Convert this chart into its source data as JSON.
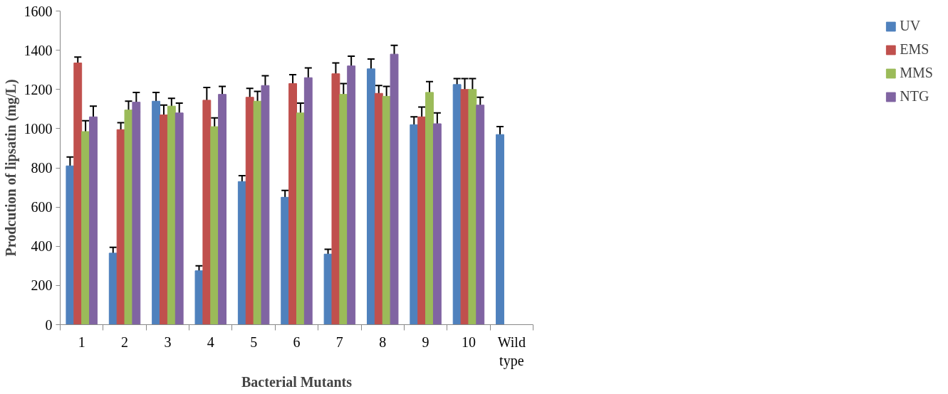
{
  "chart_data": {
    "type": "bar",
    "xlabel": "Bacterial Mutants",
    "ylabel": "Prodcution of lipsatin (mg/L)",
    "categories": [
      "1",
      "2",
      "3",
      "4",
      "5",
      "6",
      "7",
      "8",
      "9",
      "10",
      "Wild type"
    ],
    "series": [
      {
        "name": "UV",
        "color": "#4f81bd",
        "values": [
          810,
          365,
          1140,
          275,
          730,
          650,
          360,
          1305,
          1020,
          1225,
          970
        ],
        "errors": [
          45,
          30,
          45,
          25,
          30,
          35,
          25,
          50,
          40,
          30,
          40
        ]
      },
      {
        "name": "EMS",
        "color": "#c0504d",
        "values": [
          1335,
          995,
          1070,
          1145,
          1160,
          1230,
          1280,
          1180,
          1060,
          1200,
          null
        ],
        "errors": [
          30,
          35,
          50,
          65,
          45,
          45,
          55,
          40,
          50,
          55,
          null
        ]
      },
      {
        "name": "MMS",
        "color": "#9bbb59",
        "values": [
          985,
          1095,
          1115,
          1010,
          1140,
          1080,
          1175,
          1165,
          1185,
          1200,
          null
        ],
        "errors": [
          55,
          45,
          40,
          45,
          50,
          50,
          55,
          50,
          55,
          55,
          null
        ]
      },
      {
        "name": "NTG",
        "color": "#8064a2",
        "values": [
          1060,
          1135,
          1080,
          1175,
          1220,
          1260,
          1320,
          1380,
          1025,
          1120,
          null
        ],
        "errors": [
          55,
          50,
          50,
          40,
          50,
          50,
          50,
          45,
          55,
          40,
          null
        ]
      }
    ],
    "ylim": [
      0,
      1600
    ],
    "yticks": [
      0,
      200,
      400,
      600,
      800,
      1000,
      1200,
      1400,
      1600
    ],
    "grid": false,
    "legend": "right"
  }
}
